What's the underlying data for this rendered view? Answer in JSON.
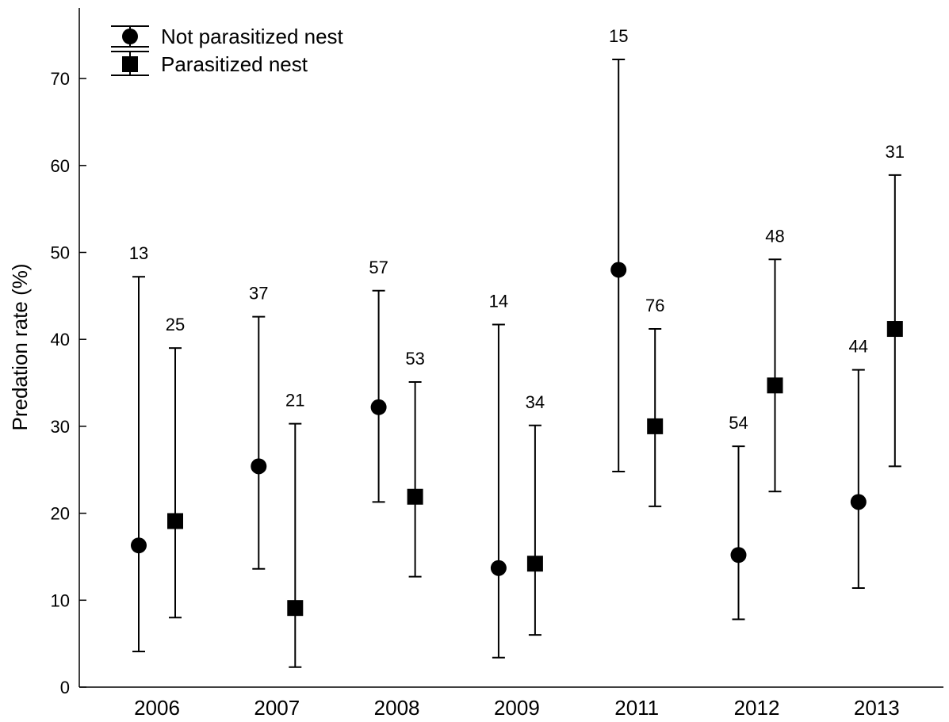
{
  "chart_data": {
    "type": "scatter",
    "ylabel": "Predation rate (%)",
    "xlabel": "",
    "ylim": [
      0,
      77
    ],
    "yticks": [
      0,
      10,
      20,
      30,
      40,
      50,
      60,
      70
    ],
    "categories": [
      "2006",
      "2007",
      "2008",
      "2009",
      "2011",
      "2012",
      "2013"
    ],
    "legend_position": "top-left",
    "grid": false,
    "series": [
      {
        "name": "Not parasitized nest",
        "marker": "circle",
        "values": [
          16.3,
          25.4,
          32.2,
          13.7,
          48.0,
          15.2,
          21.3
        ],
        "lower": [
          4.1,
          13.6,
          21.3,
          3.4,
          24.8,
          7.8,
          11.4
        ],
        "upper": [
          47.2,
          42.6,
          45.6,
          41.7,
          72.2,
          27.7,
          36.5
        ],
        "n_labels": [
          "13",
          "37",
          "57",
          "14",
          "15",
          "54",
          "44"
        ]
      },
      {
        "name": "Parasitized nest",
        "marker": "square",
        "values": [
          19.1,
          9.1,
          21.9,
          14.2,
          30.0,
          34.7,
          41.2
        ],
        "lower": [
          8.0,
          2.3,
          12.7,
          6.0,
          20.8,
          22.5,
          25.4
        ],
        "upper": [
          39.0,
          30.3,
          35.1,
          30.1,
          41.2,
          49.2,
          58.9
        ],
        "n_labels": [
          "25",
          "21",
          "53",
          "34",
          "76",
          "48",
          "31"
        ]
      }
    ]
  }
}
